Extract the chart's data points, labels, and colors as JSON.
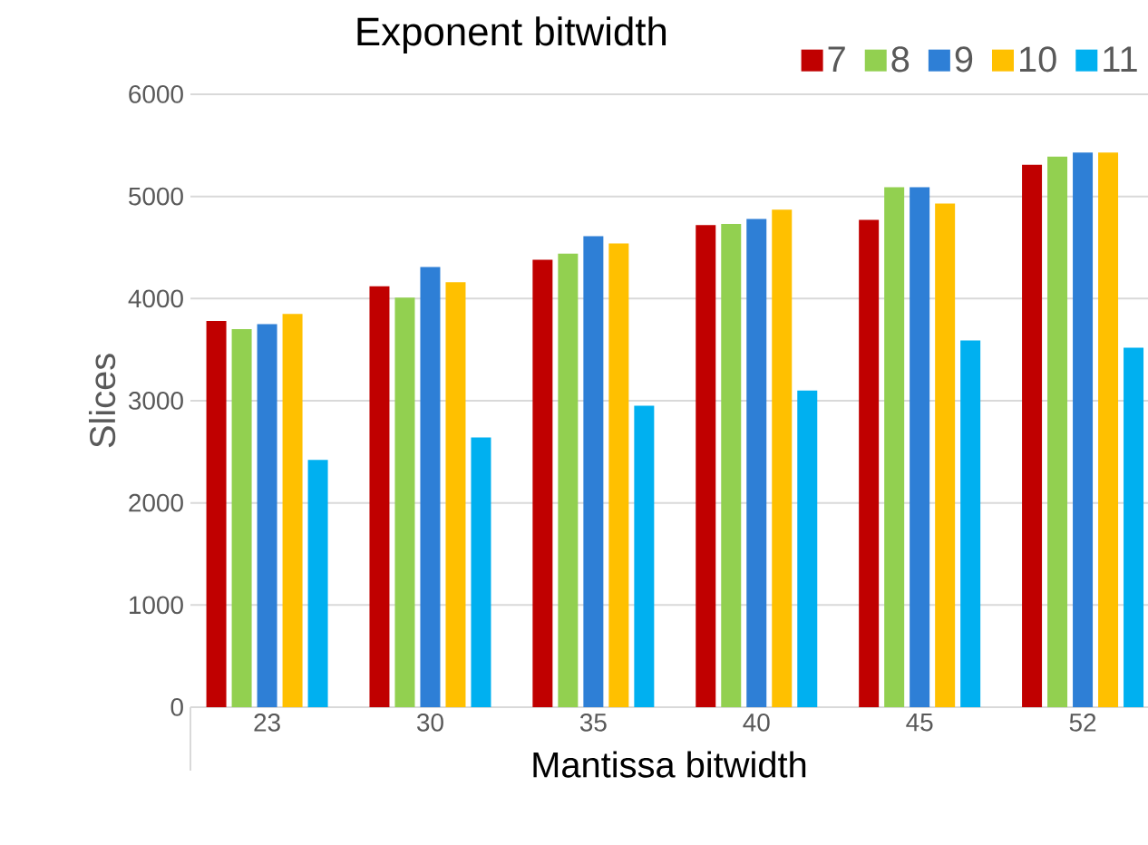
{
  "chart_data": {
    "type": "bar",
    "xlabel": "Mantissa bitwidth",
    "ylabel": "Slices",
    "legend_title": "Exponent bitwidth",
    "categories": [
      "23",
      "30",
      "35",
      "40",
      "45",
      "52"
    ],
    "series": [
      {
        "name": "7",
        "color": "#c00000",
        "values": [
          3780,
          4120,
          4380,
          4720,
          4770,
          5310
        ]
      },
      {
        "name": "8",
        "color": "#92d050",
        "values": [
          3700,
          4010,
          4440,
          4730,
          5090,
          5390
        ]
      },
      {
        "name": "9",
        "color": "#2e7fd6",
        "values": [
          3750,
          4310,
          4610,
          4780,
          5090,
          5430
        ]
      },
      {
        "name": "10",
        "color": "#ffc000",
        "values": [
          3850,
          4160,
          4540,
          4870,
          4930,
          5430
        ]
      },
      {
        "name": "11",
        "color": "#00b0f0",
        "values": [
          2420,
          2640,
          2950,
          3100,
          3590,
          3520
        ]
      }
    ],
    "ylim": [
      0,
      6000
    ],
    "yticks": [
      0,
      1000,
      2000,
      3000,
      4000,
      5000,
      6000
    ],
    "grid": "y",
    "legend": "top"
  }
}
